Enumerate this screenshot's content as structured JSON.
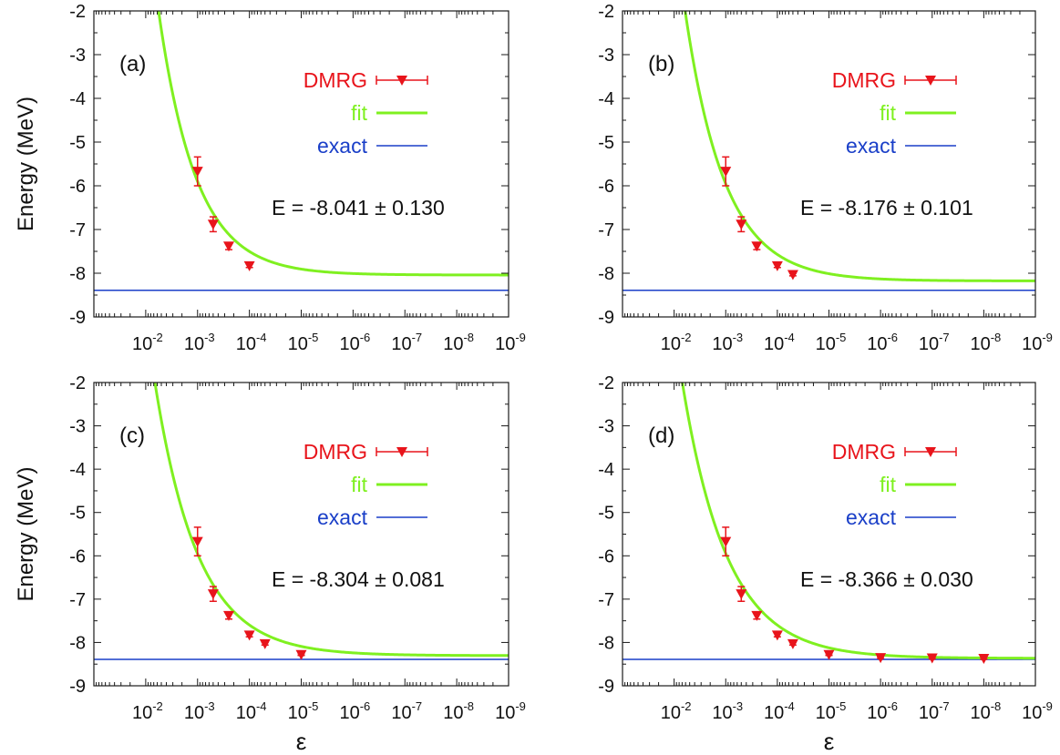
{
  "chart_data": [
    {
      "type": "line",
      "panel_label": "(a)",
      "xlabel": "",
      "ylabel": "Energy (MeV)",
      "xscale": "log",
      "x_direction": "decreasing",
      "xlim": [
        0.1,
        1e-09
      ],
      "ylim": [
        -9,
        -2
      ],
      "y_ticks": [
        "-2",
        "-3",
        "-4",
        "-5",
        "-6",
        "-7",
        "-8",
        "-9"
      ],
      "x_ticks": [
        {
          "base": "10",
          "exp": "-2"
        },
        {
          "base": "10",
          "exp": "-3"
        },
        {
          "base": "10",
          "exp": "-4"
        },
        {
          "base": "10",
          "exp": "-5"
        },
        {
          "base": "10",
          "exp": "-6"
        },
        {
          "base": "10",
          "exp": "-7"
        },
        {
          "base": "10",
          "exp": "-8"
        },
        {
          "base": "10",
          "exp": "-9"
        }
      ],
      "legend": [
        {
          "label": "DMRG",
          "color": "#e8141b",
          "style": "triangle-errorbar"
        },
        {
          "label": "fit",
          "color": "#7ff020",
          "style": "thick-line"
        },
        {
          "label": "exact",
          "color": "#1a3fc8",
          "style": "thin-line"
        }
      ],
      "annotation": {
        "prefix": "E = -8.041",
        "pm": "±",
        "error": "0.130"
      },
      "series": [
        {
          "name": "DMRG",
          "points": [
            {
              "x": 0.001,
              "y": -5.67,
              "err": 0.33
            },
            {
              "x": 0.0005,
              "y": -6.88,
              "err": 0.17
            },
            {
              "x": 0.00025,
              "y": -7.38,
              "err": 0.08
            },
            {
              "x": 0.0001,
              "y": -7.83,
              "err": 0.04
            }
          ]
        },
        {
          "name": "fit",
          "asymptote": -8.041,
          "amplitude": 2.14,
          "decay": 1.38
        },
        {
          "name": "exact",
          "value": -8.39
        }
      ]
    },
    {
      "type": "line",
      "panel_label": "(b)",
      "xlabel": "",
      "ylabel": "",
      "xscale": "log",
      "x_direction": "decreasing",
      "xlim": [
        0.1,
        1e-09
      ],
      "ylim": [
        -9,
        -2
      ],
      "y_ticks": [
        "-2",
        "-3",
        "-4",
        "-5",
        "-6",
        "-7",
        "-8",
        "-9"
      ],
      "x_ticks": [
        {
          "base": "10",
          "exp": "-2"
        },
        {
          "base": "10",
          "exp": "-3"
        },
        {
          "base": "10",
          "exp": "-4"
        },
        {
          "base": "10",
          "exp": "-5"
        },
        {
          "base": "10",
          "exp": "-6"
        },
        {
          "base": "10",
          "exp": "-7"
        },
        {
          "base": "10",
          "exp": "-8"
        },
        {
          "base": "10",
          "exp": "-9"
        }
      ],
      "legend": [
        {
          "label": "DMRG",
          "color": "#e8141b",
          "style": "triangle-errorbar"
        },
        {
          "label": "fit",
          "color": "#7ff020",
          "style": "thick-line"
        },
        {
          "label": "exact",
          "color": "#1a3fc8",
          "style": "thin-line"
        }
      ],
      "annotation": {
        "prefix": "E = -8.176",
        "pm": "±",
        "error": "0.101"
      },
      "series": [
        {
          "name": "DMRG",
          "points": [
            {
              "x": 0.001,
              "y": -5.67,
              "err": 0.33
            },
            {
              "x": 0.0005,
              "y": -6.88,
              "err": 0.17
            },
            {
              "x": 0.00025,
              "y": -7.38,
              "err": 0.08
            },
            {
              "x": 0.0001,
              "y": -7.83,
              "err": 0.04
            },
            {
              "x": 5e-05,
              "y": -8.03,
              "err": 0.03
            }
          ]
        },
        {
          "name": "fit",
          "asymptote": -8.176,
          "amplitude": 2.22,
          "decay": 1.3
        },
        {
          "name": "exact",
          "value": -8.39
        }
      ]
    },
    {
      "type": "line",
      "panel_label": "(c)",
      "xlabel": "ε",
      "ylabel": "Energy (MeV)",
      "xscale": "log",
      "x_direction": "decreasing",
      "xlim": [
        0.1,
        1e-09
      ],
      "ylim": [
        -9,
        -2
      ],
      "y_ticks": [
        "-2",
        "-3",
        "-4",
        "-5",
        "-6",
        "-7",
        "-8",
        "-9"
      ],
      "x_ticks": [
        {
          "base": "10",
          "exp": "-2"
        },
        {
          "base": "10",
          "exp": "-3"
        },
        {
          "base": "10",
          "exp": "-4"
        },
        {
          "base": "10",
          "exp": "-5"
        },
        {
          "base": "10",
          "exp": "-6"
        },
        {
          "base": "10",
          "exp": "-7"
        },
        {
          "base": "10",
          "exp": "-8"
        },
        {
          "base": "10",
          "exp": "-9"
        }
      ],
      "legend": [
        {
          "label": "DMRG",
          "color": "#e8141b",
          "style": "triangle-errorbar"
        },
        {
          "label": "fit",
          "color": "#7ff020",
          "style": "thick-line"
        },
        {
          "label": "exact",
          "color": "#1a3fc8",
          "style": "thin-line"
        }
      ],
      "annotation": {
        "prefix": "E = -8.304",
        "pm": "±",
        "error": "0.081"
      },
      "series": [
        {
          "name": "DMRG",
          "points": [
            {
              "x": 0.001,
              "y": -5.67,
              "err": 0.33
            },
            {
              "x": 0.0005,
              "y": -6.88,
              "err": 0.17
            },
            {
              "x": 0.00025,
              "y": -7.38,
              "err": 0.08
            },
            {
              "x": 0.0001,
              "y": -7.83,
              "err": 0.04
            },
            {
              "x": 5e-05,
              "y": -8.03,
              "err": 0.03
            },
            {
              "x": 1e-05,
              "y": -8.28,
              "err": 0.02
            }
          ]
        },
        {
          "name": "fit",
          "asymptote": -8.304,
          "amplitude": 2.35,
          "decay": 1.2
        },
        {
          "name": "exact",
          "value": -8.39
        }
      ]
    },
    {
      "type": "line",
      "panel_label": "(d)",
      "xlabel": "ε",
      "ylabel": "",
      "xscale": "log",
      "x_direction": "decreasing",
      "xlim": [
        0.1,
        1e-09
      ],
      "ylim": [
        -9,
        -2
      ],
      "y_ticks": [
        "-2",
        "-3",
        "-4",
        "-5",
        "-6",
        "-7",
        "-8",
        "-9"
      ],
      "x_ticks": [
        {
          "base": "10",
          "exp": "-2"
        },
        {
          "base": "10",
          "exp": "-3"
        },
        {
          "base": "10",
          "exp": "-4"
        },
        {
          "base": "10",
          "exp": "-5"
        },
        {
          "base": "10",
          "exp": "-6"
        },
        {
          "base": "10",
          "exp": "-7"
        },
        {
          "base": "10",
          "exp": "-8"
        },
        {
          "base": "10",
          "exp": "-9"
        }
      ],
      "legend": [
        {
          "label": "DMRG",
          "color": "#e8141b",
          "style": "triangle-errorbar"
        },
        {
          "label": "fit",
          "color": "#7ff020",
          "style": "thick-line"
        },
        {
          "label": "exact",
          "color": "#1a3fc8",
          "style": "thin-line"
        }
      ],
      "annotation": {
        "prefix": "E = -8.366",
        "pm": "±",
        "error": "0.030"
      },
      "series": [
        {
          "name": "DMRG",
          "points": [
            {
              "x": 0.001,
              "y": -5.67,
              "err": 0.33
            },
            {
              "x": 0.0005,
              "y": -6.88,
              "err": 0.17
            },
            {
              "x": 0.00025,
              "y": -7.38,
              "err": 0.08
            },
            {
              "x": 0.0001,
              "y": -7.83,
              "err": 0.04
            },
            {
              "x": 5e-05,
              "y": -8.03,
              "err": 0.03
            },
            {
              "x": 1e-05,
              "y": -8.28,
              "err": 0.02
            },
            {
              "x": 1e-06,
              "y": -8.35,
              "err": 0.02
            },
            {
              "x": 1e-07,
              "y": -8.36,
              "err": 0.02
            },
            {
              "x": 1e-08,
              "y": -8.37,
              "err": 0.02
            }
          ]
        },
        {
          "name": "fit",
          "asymptote": -8.366,
          "amplitude": 2.42,
          "decay": 1.15
        },
        {
          "name": "exact",
          "value": -8.39
        }
      ]
    }
  ]
}
